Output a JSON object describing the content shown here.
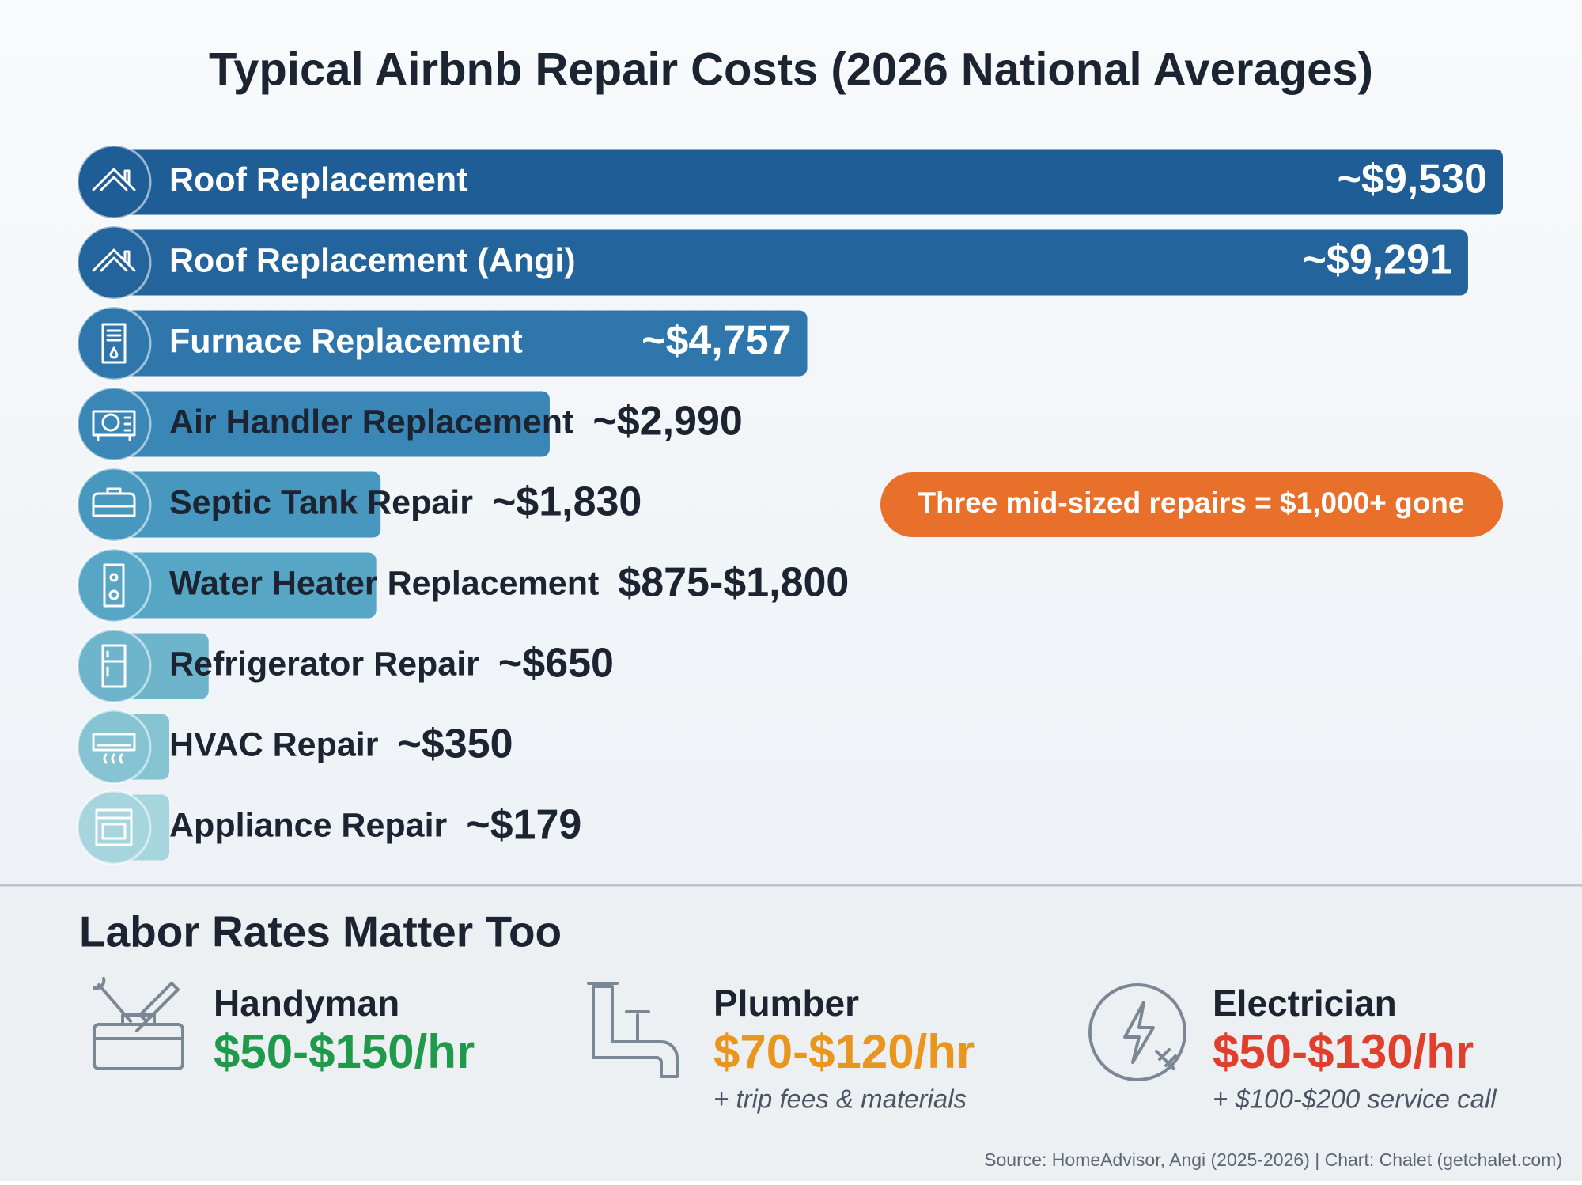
{
  "chart_data": {
    "type": "bar",
    "orientation": "horizontal",
    "title": "Typical Airbnb Repair Costs (2026 National Averages)",
    "categories": [
      "Roof Replacement",
      "Roof Replacement (Angi)",
      "Furnace Replacement",
      "Air Handler Replacement",
      "Septic Tank Repair",
      "Water Heater Replacement",
      "Refrigerator Repair",
      "HVAC Repair",
      "Appliance Repair"
    ],
    "values": [
      9530,
      9291,
      4757,
      2990,
      1830,
      [
        875,
        1800
      ],
      650,
      350,
      179
    ],
    "value_labels": [
      "~$9,530",
      "~$9,291",
      "~$4,757",
      "~$2,990",
      "~$1,830",
      "$875-$1,800",
      "~$650",
      "~$350",
      "~$179"
    ],
    "colors": [
      "#1f5d97",
      "#23649d",
      "#2e76ab",
      "#3a86b6",
      "#4897bf",
      "#58a6c6",
      "#6eb5cc",
      "#86c4d3",
      "#a6d5de"
    ],
    "annotation": "Three mid-sized repairs = $1,000+ gone",
    "annotation_color": "#e8702a"
  },
  "labor_rates": {
    "title": "Labor Rates Matter Too",
    "items": [
      {
        "name": "Handyman",
        "rate": "$50-$150/hr",
        "color": "#1f9a4b"
      },
      {
        "name": "Plumber",
        "rate": "$70-$120/hr",
        "note": "+ trip fees & materials",
        "color": "#e8961e"
      },
      {
        "name": "Electrician",
        "rate": "$50-$130/hr",
        "note": "+ $100-$200 service call",
        "color": "#e0402b"
      }
    ]
  },
  "source": "Source: HomeAdvisor, Angi (2025-2026) | Chart: Chalet (getchalet.com)"
}
